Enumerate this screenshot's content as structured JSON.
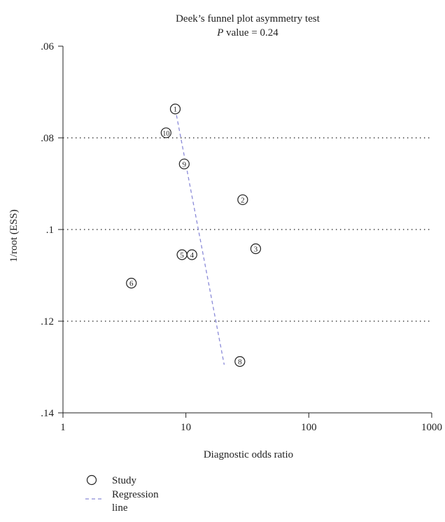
{
  "chart_data": {
    "type": "scatter",
    "title": "Deek’s funnel plot asymmetry test",
    "subtitle_prefix": "P",
    "subtitle_rest": " value = 0.24",
    "xlabel": "Diagnostic odds ratio",
    "ylabel": "1/root (ESS)",
    "x_scale": "log",
    "xlim": [
      1,
      1000
    ],
    "ylim": [
      0.06,
      0.14
    ],
    "y_inverted": true,
    "x_ticks": [
      {
        "value": 1,
        "label": "1"
      },
      {
        "value": 10,
        "label": "10"
      },
      {
        "value": 100,
        "label": "100"
      },
      {
        "value": 1000,
        "label": "1000"
      }
    ],
    "y_ticks": [
      {
        "value": 0.06,
        "label": ".06"
      },
      {
        "value": 0.08,
        "label": ".08"
      },
      {
        "value": 0.1,
        "label": ".1"
      },
      {
        "value": 0.12,
        "label": ".12"
      },
      {
        "value": 0.14,
        "label": ".14"
      }
    ],
    "grid_lines_y": [
      0.08,
      0.1,
      0.12
    ],
    "series": [
      {
        "name": "Study",
        "points": [
          {
            "label": "1",
            "x": 8.2,
            "y": 0.0737
          },
          {
            "label": "2",
            "x": 29,
            "y": 0.0935
          },
          {
            "label": "3",
            "x": 37,
            "y": 0.1042
          },
          {
            "label": "4",
            "x": 11.2,
            "y": 0.1055
          },
          {
            "label": "5",
            "x": 9.3,
            "y": 0.1055
          },
          {
            "label": "6",
            "x": 3.6,
            "y": 0.1117
          },
          {
            "label": "8",
            "x": 27.5,
            "y": 0.1288
          },
          {
            "label": "9",
            "x": 9.7,
            "y": 0.0857
          },
          {
            "label": "10",
            "x": 6.9,
            "y": 0.0789
          }
        ]
      },
      {
        "name": "Regression line",
        "line": [
          {
            "x": 8.2,
            "y": 0.0737
          },
          {
            "x": 20.5,
            "y": 0.1295
          }
        ]
      }
    ],
    "colors": {
      "marker": "#222222",
      "regression": "#8a8ad8",
      "grid": "#222222",
      "axis": "#222222"
    },
    "legend": {
      "position": "bottom-left",
      "study_label": "Study",
      "regression_label_line1": "Regression",
      "regression_label_line2": "line"
    },
    "grid": true
  }
}
